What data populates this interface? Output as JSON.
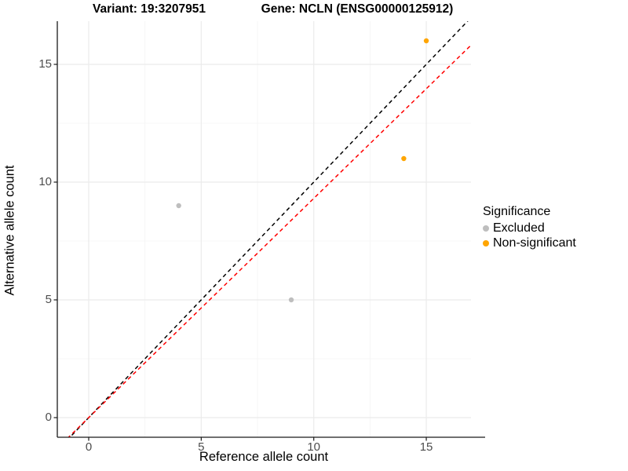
{
  "chart_data": {
    "type": "scatter",
    "titles": [
      "Variant: 19:3207951",
      "Gene: NCLN (ENSG00000125912)"
    ],
    "xlabel": "Reference allele count",
    "ylabel": "Alternative allele count",
    "xlim": [
      -1.4,
      17.0
    ],
    "ylim": [
      -0.85,
      16.85
    ],
    "xticks": [
      0,
      5,
      10,
      15
    ],
    "yticks": [
      0,
      5,
      10,
      15
    ],
    "minor_xticks": [
      2.5,
      7.5,
      12.5
    ],
    "minor_yticks": [
      2.5,
      7.5,
      12.5
    ],
    "grid": true,
    "legend_title": "Significance",
    "legend_position": "right",
    "series": [
      {
        "name": "Excluded",
        "color": "#BEBEBE",
        "points": [
          [
            4,
            9
          ],
          [
            9,
            5
          ]
        ]
      },
      {
        "name": "Non-significant",
        "color": "#FFA500",
        "points": [
          [
            14,
            11
          ],
          [
            15,
            16
          ]
        ]
      }
    ],
    "reference_lines": [
      {
        "name": "identity",
        "slope": 1.0,
        "intercept": 0,
        "color": "#000000",
        "style": "dashed"
      },
      {
        "name": "allelic-ratio",
        "slope": 0.931,
        "intercept": 0,
        "color": "#FF0000",
        "style": "dashed"
      }
    ],
    "colors": {
      "background": "#FFFFFF",
      "grid_major": "#EBEBEB",
      "grid_minor": "#F4F4F4",
      "axis": "#1a1a1a",
      "tick_label": "#4d4d4d"
    }
  }
}
